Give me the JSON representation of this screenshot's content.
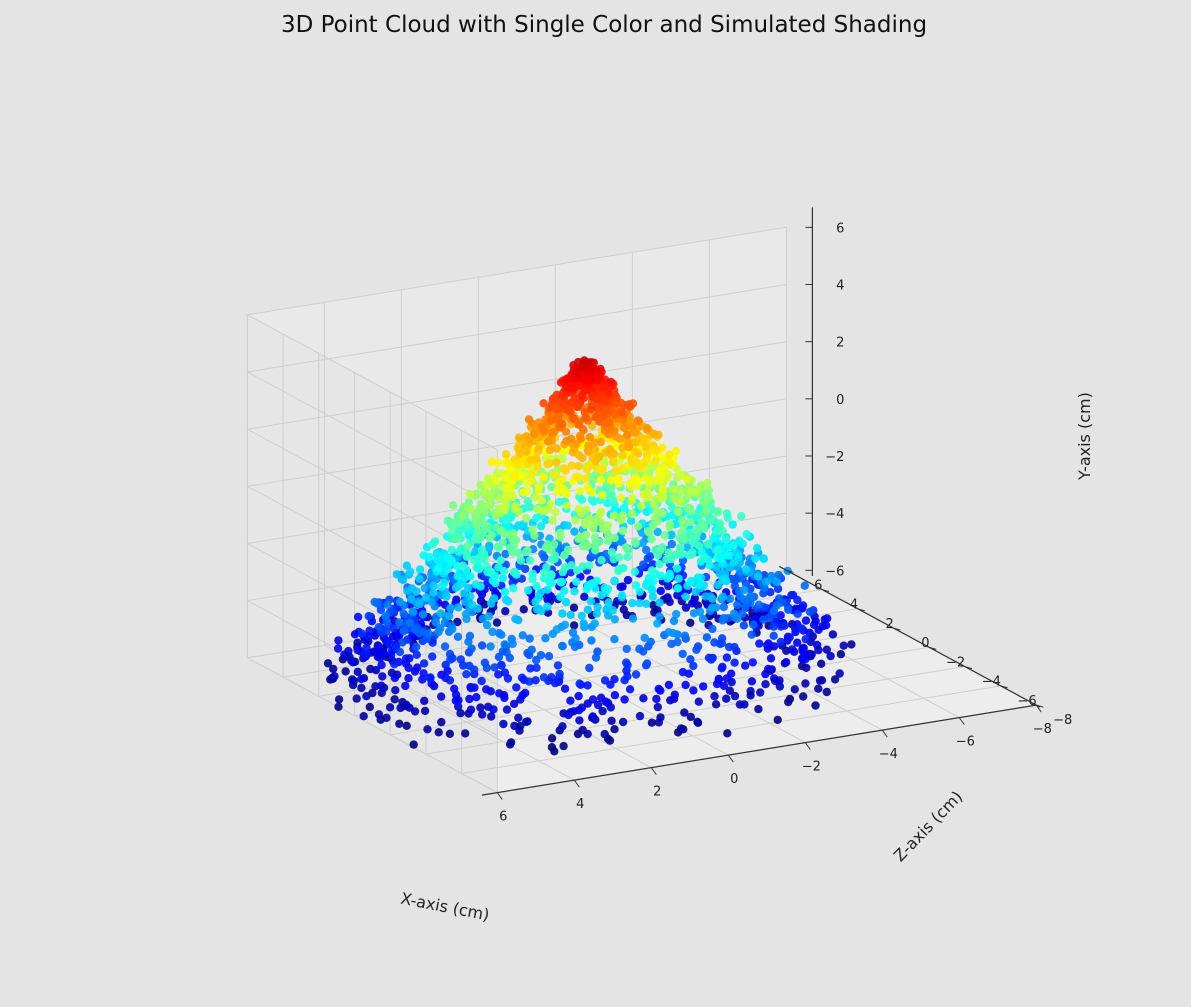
{
  "chart_data": {
    "type": "scatter",
    "projection": "3d",
    "title": "3D Point Cloud with Single Color and Simulated Shading",
    "xlabel": "X-axis (cm)",
    "ylabel": "Y-axis (cm)",
    "zlabel": "Z-axis (cm)",
    "xlim": [
      -8,
      6
    ],
    "ylim": [
      -6,
      6
    ],
    "zlim": [
      -8,
      6
    ],
    "x_ticks": [
      "6",
      "4",
      "2",
      "0",
      "−2",
      "−4",
      "−6",
      "−8"
    ],
    "y_ticks": [
      "−6",
      "−4",
      "−2",
      "0",
      "2",
      "4",
      "6"
    ],
    "z_ticks": [
      "−8",
      "−6",
      "−4",
      "−2",
      "0",
      "2",
      "4",
      "6"
    ],
    "shape": "cone",
    "cone_apex_y": 5,
    "cone_base_y": -6,
    "cone_base_radius": 6,
    "colormap": "jet",
    "color_by": "y",
    "grid": true,
    "legend": "none"
  }
}
